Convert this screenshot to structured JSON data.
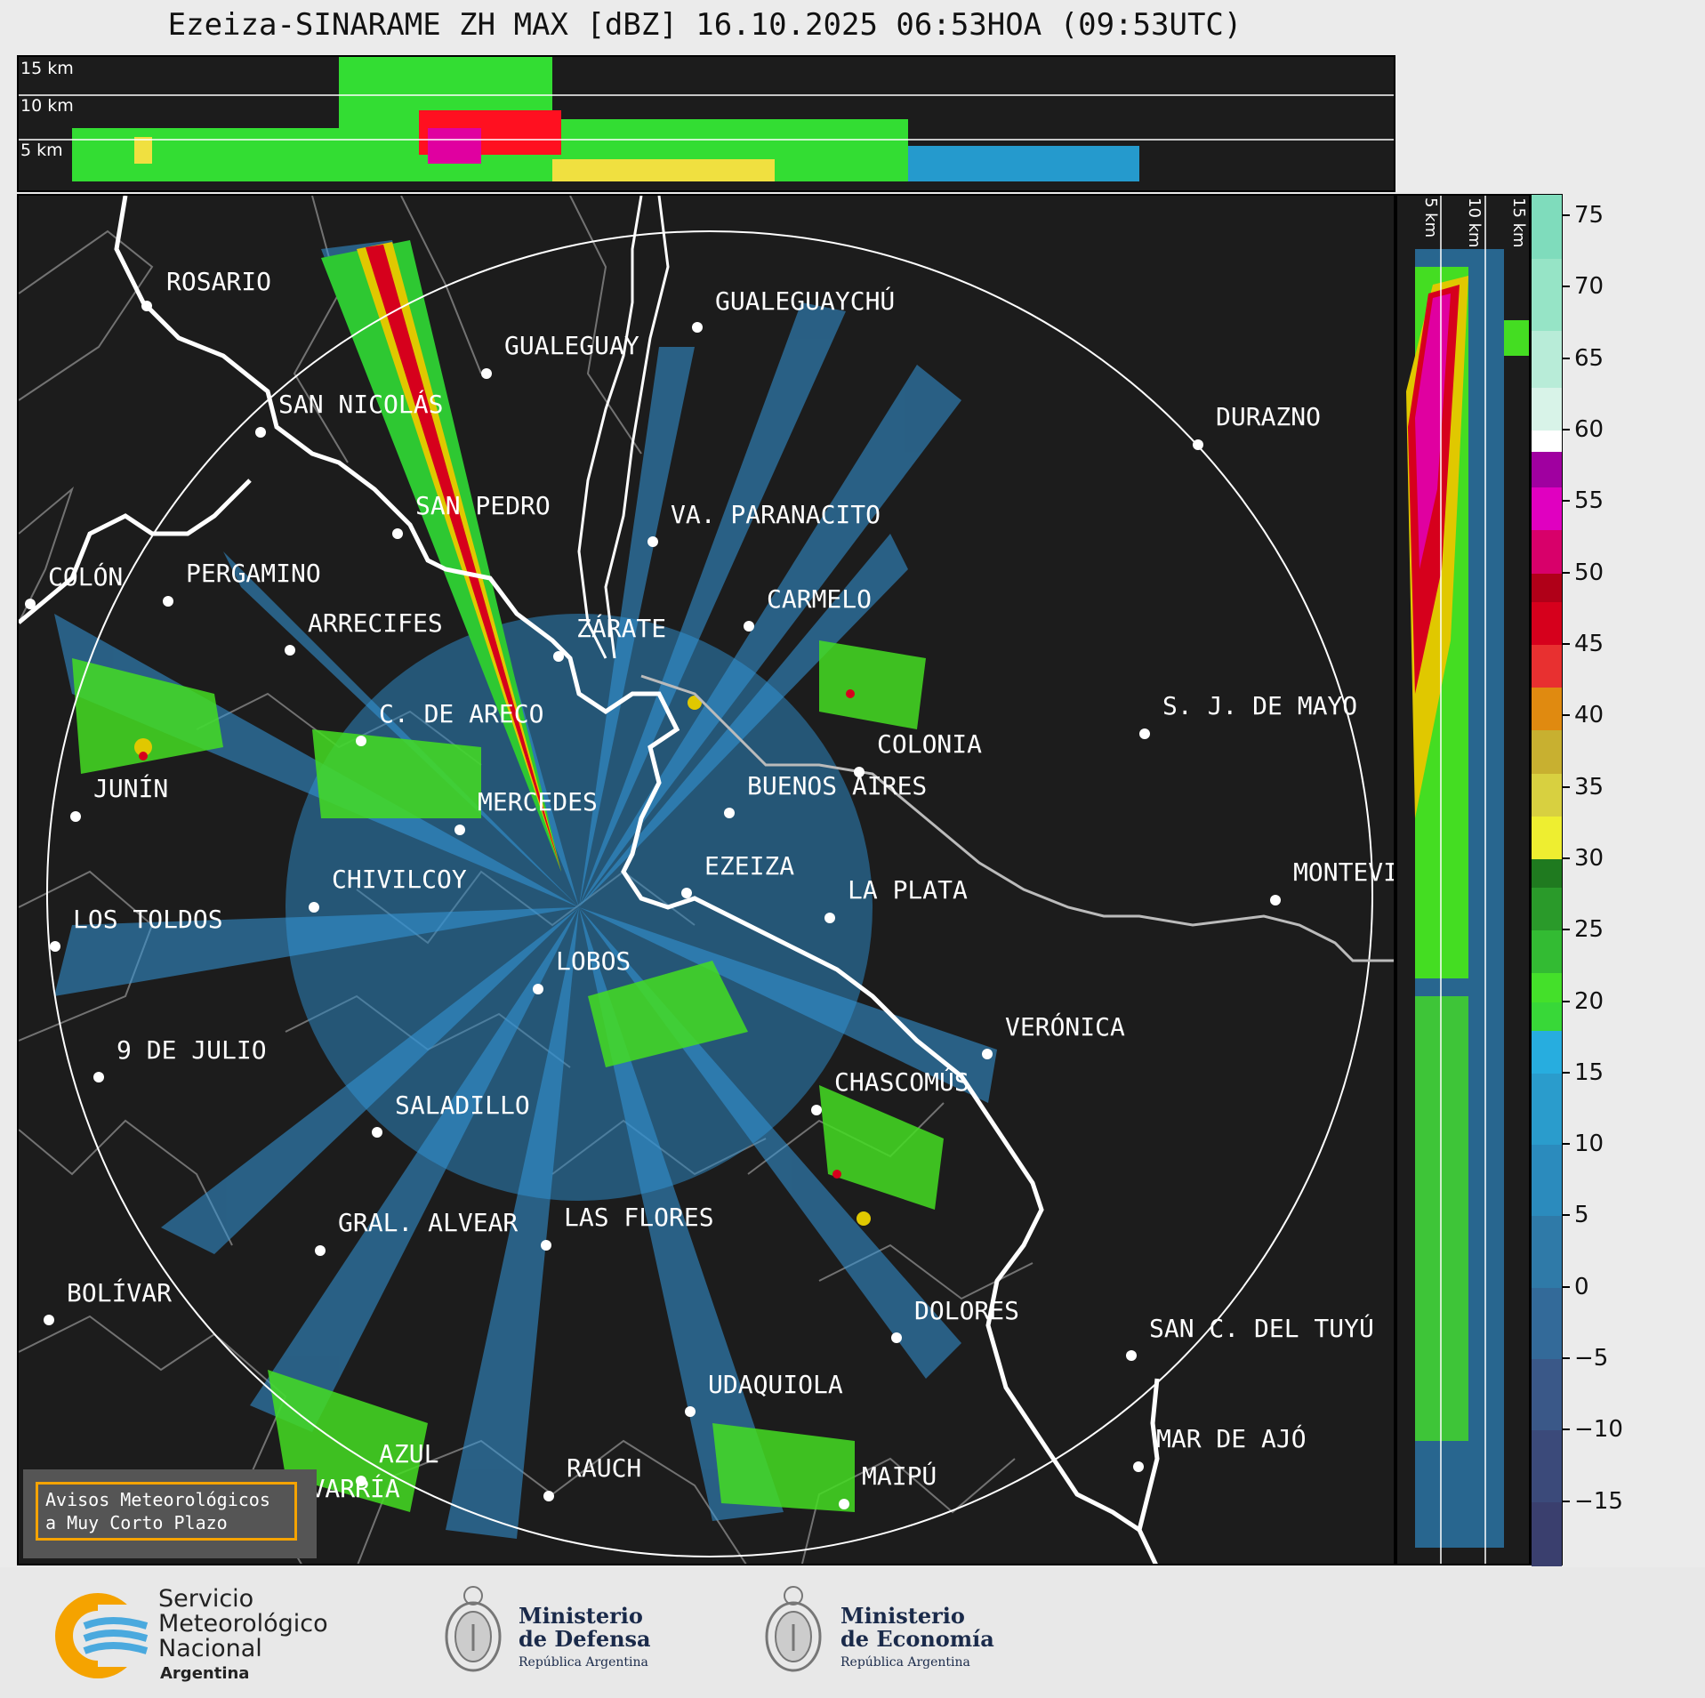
{
  "title": "Ezeiza-SINARAME ZH MAX [dBZ] 16.10.2025 06:53HOA (09:53UTC)",
  "top_panel": {
    "height_labels": [
      "15 km",
      "10 km",
      "5 km"
    ]
  },
  "right_panel": {
    "height_labels": [
      "5 km",
      "10 km",
      "15 km"
    ]
  },
  "colorbar": {
    "unit": "dBZ",
    "ticks": [
      "75",
      "70",
      "65",
      "60",
      "55",
      "50",
      "45",
      "40",
      "35",
      "30",
      "25",
      "20",
      "15",
      "10",
      "5",
      "0",
      "−5",
      "−10",
      "−15"
    ],
    "range": [
      -19.5,
      76.5
    ]
  },
  "cities": [
    {
      "name": "ROSARIO"
    },
    {
      "name": "GUALEGUAYCHÚ"
    },
    {
      "name": "GUALEGUAY"
    },
    {
      "name": "SAN NICOLÁS"
    },
    {
      "name": "DURAZNO"
    },
    {
      "name": "SAN PEDRO"
    },
    {
      "name": "VA. PARANACITO"
    },
    {
      "name": "COLÓN"
    },
    {
      "name": "PERGAMINO"
    },
    {
      "name": "CARMELO"
    },
    {
      "name": "ARRECIFES"
    },
    {
      "name": "ZÁRATE"
    },
    {
      "name": "S. J. DE MAYO"
    },
    {
      "name": "C. DE ARECO"
    },
    {
      "name": "COLONIA"
    },
    {
      "name": "JUNÍN"
    },
    {
      "name": "BUENOS AIRES"
    },
    {
      "name": "MERCEDES"
    },
    {
      "name": "EZEIZA"
    },
    {
      "name": "MONTEVIDEO"
    },
    {
      "name": "CHIVILCOY"
    },
    {
      "name": "LA PLATA"
    },
    {
      "name": "LOS TOLDOS"
    },
    {
      "name": "LOBOS"
    },
    {
      "name": "VERÓNICA"
    },
    {
      "name": "9 DE JULIO"
    },
    {
      "name": "CHASCOMÚS"
    },
    {
      "name": "SALADILLO"
    },
    {
      "name": "GRAL. ALVEAR"
    },
    {
      "name": "LAS FLORES"
    },
    {
      "name": "BOLÍVAR"
    },
    {
      "name": "DOLORES"
    },
    {
      "name": "SAN C. DEL TUYÚ"
    },
    {
      "name": "UDAQUIOLA"
    },
    {
      "name": "MAR DE AJÓ"
    },
    {
      "name": "AZUL"
    },
    {
      "name": "RAUCH"
    },
    {
      "name": "OLAVARRÍA"
    },
    {
      "name": "MAIPÚ"
    }
  ],
  "warning_box": {
    "line1": "Avisos Meteorológicos",
    "line2": "a Muy Corto Plazo"
  },
  "footer": {
    "smn_line1": "Servicio",
    "smn_line2": "Meteorológico",
    "smn_line3": "Nacional",
    "smn_line4": "Argentina",
    "defensa_line1": "Ministerio",
    "defensa_line2": "de Defensa",
    "defensa_line3": "República Argentina",
    "economia_line1": "Ministerio",
    "economia_line2": "de Economía",
    "economia_line3": "República Argentina"
  }
}
